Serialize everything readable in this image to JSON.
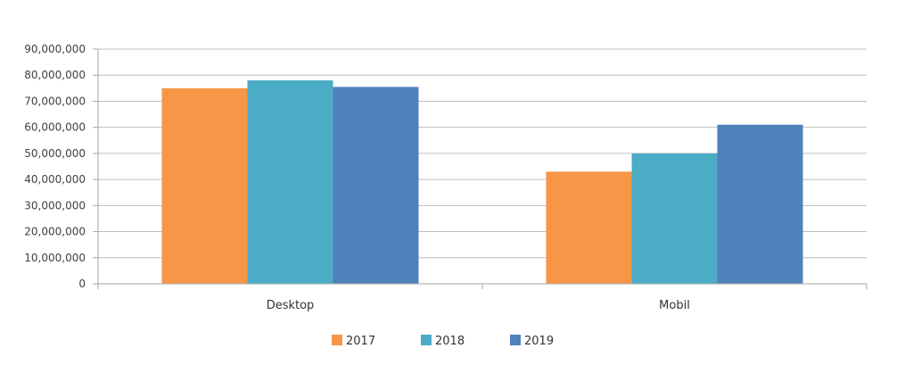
{
  "chart_data": {
    "type": "bar",
    "title": "",
    "xlabel": "",
    "ylabel": "",
    "categories": [
      "Desktop",
      "Mobil"
    ],
    "series": [
      {
        "name": "2017",
        "color": "#F79646",
        "values": [
          75000000,
          43000000
        ]
      },
      {
        "name": "2018",
        "color": "#4BACC6",
        "values": [
          78000000,
          50000000
        ]
      },
      {
        "name": "2019",
        "color": "#4F81BD",
        "values": [
          75500000,
          61000000
        ]
      }
    ],
    "ylim": [
      0,
      90000000
    ],
    "yticks": [
      {
        "value": 0,
        "label": "0"
      },
      {
        "value": 10000000,
        "label": "10,000,000"
      },
      {
        "value": 20000000,
        "label": "20,000,000"
      },
      {
        "value": 30000000,
        "label": "30,000,000"
      },
      {
        "value": 40000000,
        "label": "40,000,000"
      },
      {
        "value": 50000000,
        "label": "50,000,000"
      },
      {
        "value": 60000000,
        "label": "60,000,000"
      },
      {
        "value": 70000000,
        "label": "70,000,000"
      },
      {
        "value": 80000000,
        "label": "80,000,000"
      },
      {
        "value": 90000000,
        "label": "90,000,000"
      }
    ],
    "grid": true,
    "legend": "bottom"
  }
}
